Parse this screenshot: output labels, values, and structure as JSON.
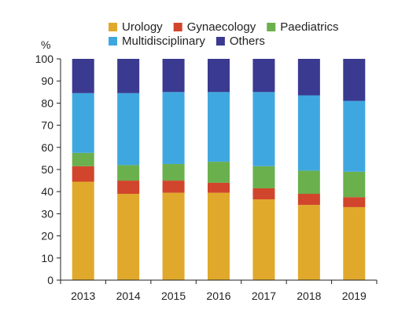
{
  "chart_data": {
    "type": "bar",
    "stacked": true,
    "title": "",
    "xlabel": "",
    "ylabel": "%",
    "ylim": [
      0,
      100
    ],
    "yticks": [
      0,
      10,
      20,
      30,
      40,
      50,
      60,
      70,
      80,
      90,
      100
    ],
    "grid": false,
    "legend_position": "top",
    "categories": [
      "2013",
      "2014",
      "2015",
      "2016",
      "2017",
      "2018",
      "2019"
    ],
    "series": [
      {
        "name": "Urology",
        "color": "#e0a92c",
        "values": [
          44.5,
          39,
          39.5,
          39.5,
          36.5,
          34,
          33
        ]
      },
      {
        "name": "Gynaecology",
        "color": "#d1452c",
        "values": [
          7,
          6,
          5.5,
          4.5,
          5,
          5,
          4.5
        ]
      },
      {
        "name": "Paediatrics",
        "color": "#6ab04c",
        "values": [
          6,
          7,
          7.5,
          9.5,
          10,
          10.5,
          11.5
        ]
      },
      {
        "name": "Multidisciplinary",
        "color": "#3fa7e0",
        "values": [
          27,
          32.5,
          32.5,
          31.5,
          33.5,
          34,
          32
        ]
      },
      {
        "name": "Others",
        "color": "#3a3a90",
        "values": [
          15.5,
          15.5,
          15,
          15,
          15,
          16.5,
          19
        ]
      }
    ]
  }
}
